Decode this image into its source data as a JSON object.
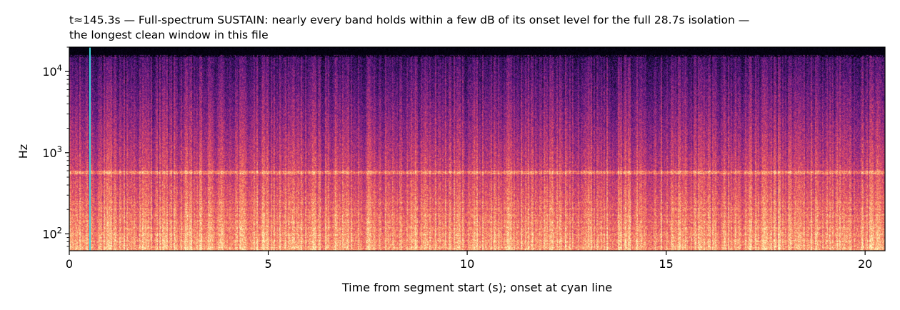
{
  "chart_data": {
    "type": "heatmap",
    "kind": "spectrogram",
    "colormap": "magma",
    "title_lines": [
      "t≈145.3s — Full-spectrum SUSTAIN: nearly every band holds within a few dB of its onset level for the full 28.7s isolation —",
      "the longest clean window in this file"
    ],
    "xlabel": "Time from segment start (s); onset at cyan line",
    "ylabel": "Hz",
    "xlim": [
      0,
      20.5
    ],
    "ylim": [
      62,
      20000
    ],
    "yscale": "log",
    "x_ticks": [
      0,
      5,
      10,
      15,
      20
    ],
    "x_tick_labels": [
      "0",
      "5",
      "10",
      "15",
      "20"
    ],
    "y_ticks": [
      100,
      1000,
      10000
    ],
    "y_tick_labels": [
      {
        "base": "10",
        "exp": "2"
      },
      {
        "base": "10",
        "exp": "3"
      },
      {
        "base": "10",
        "exp": "4"
      }
    ],
    "onset_line": {
      "x": 0.52,
      "color": "#3fd6e0"
    },
    "spectral_cutoff_hz": 16000,
    "tonal_band_hz": 580,
    "grid": false,
    "legend": "none"
  }
}
